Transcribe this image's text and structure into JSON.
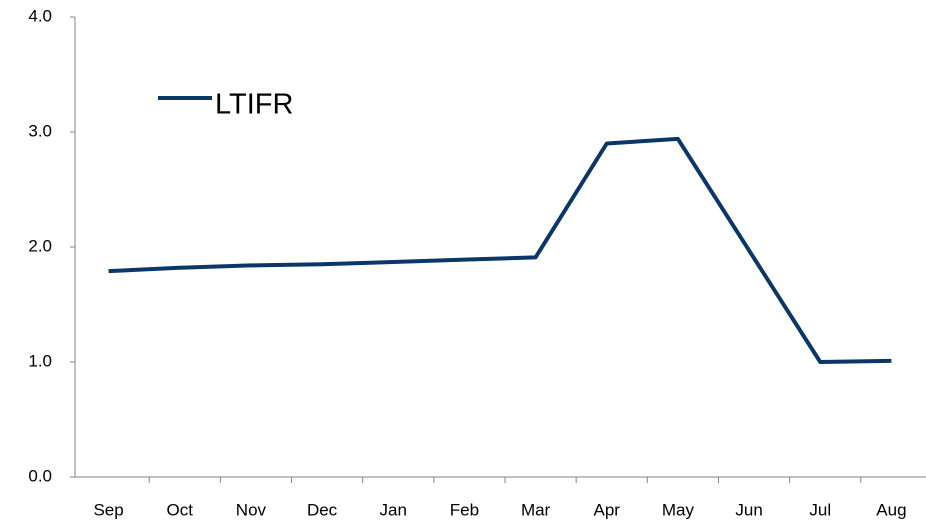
{
  "chart_data": {
    "type": "line",
    "categories": [
      "Sep",
      "Oct",
      "Nov",
      "Dec",
      "Jan",
      "Feb",
      "Mar",
      "Apr",
      "May",
      "Jun",
      "Jul",
      "Aug"
    ],
    "series": [
      {
        "name": "LTIFR",
        "color": "#0b3768",
        "values": [
          1.79,
          1.82,
          1.84,
          1.85,
          1.87,
          1.89,
          1.91,
          2.9,
          2.94,
          1.97,
          1.0,
          1.01
        ]
      }
    ],
    "ylim": [
      0,
      4
    ],
    "yticks": [
      {
        "value": 0,
        "label": "0.0"
      },
      {
        "value": 1,
        "label": "1.0"
      },
      {
        "value": 2,
        "label": "2.0"
      },
      {
        "value": 3,
        "label": "3.0"
      },
      {
        "value": 4,
        "label": "4.0"
      }
    ],
    "grid": false,
    "legend": "upper left"
  }
}
